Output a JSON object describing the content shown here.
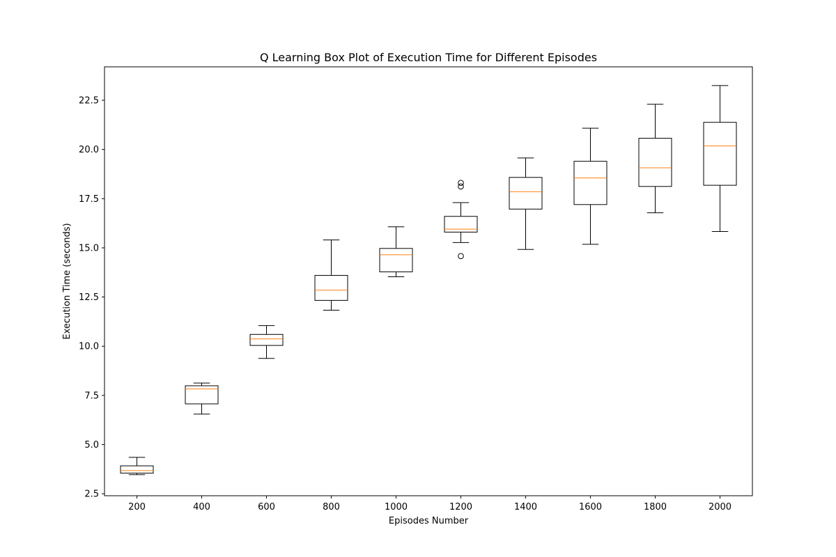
{
  "chart_data": {
    "type": "box",
    "title": "Q Learning Box Plot of Execution Time for Different Episodes",
    "xlabel": "Episodes Number",
    "ylabel": "Execution Time (seconds)",
    "ylim": [
      2.4,
      24.2
    ],
    "yticks": [
      2.5,
      5.0,
      7.5,
      10.0,
      12.5,
      15.0,
      17.5,
      20.0,
      22.5
    ],
    "ytick_labels": [
      "2.5",
      "5.0",
      "7.5",
      "10.0",
      "12.5",
      "15.0",
      "17.5",
      "20.0",
      "22.5"
    ],
    "categories": [
      "200",
      "400",
      "600",
      "800",
      "1000",
      "1200",
      "1400",
      "1600",
      "1800",
      "2000"
    ],
    "boxes": [
      {
        "whisker_low": 3.47,
        "q1": 3.55,
        "median": 3.68,
        "q3": 3.92,
        "whisker_high": 4.35,
        "outliers": []
      },
      {
        "whisker_low": 6.55,
        "q1": 7.07,
        "median": 7.83,
        "q3": 7.99,
        "whisker_high": 8.13,
        "outliers": []
      },
      {
        "whisker_low": 9.38,
        "q1": 10.04,
        "median": 10.37,
        "q3": 10.6,
        "whisker_high": 11.05,
        "outliers": []
      },
      {
        "whisker_low": 11.83,
        "q1": 12.33,
        "median": 12.85,
        "q3": 13.6,
        "whisker_high": 15.4,
        "outliers": []
      },
      {
        "whisker_low": 13.53,
        "q1": 13.78,
        "median": 14.65,
        "q3": 14.97,
        "whisker_high": 16.07,
        "outliers": []
      },
      {
        "whisker_low": 15.27,
        "q1": 15.8,
        "median": 15.95,
        "q3": 16.6,
        "whisker_high": 17.3,
        "outliers": [
          18.3,
          18.12,
          14.58
        ]
      },
      {
        "whisker_low": 14.92,
        "q1": 16.97,
        "median": 17.85,
        "q3": 18.58,
        "whisker_high": 19.57,
        "outliers": []
      },
      {
        "whisker_low": 15.18,
        "q1": 17.2,
        "median": 18.55,
        "q3": 19.4,
        "whisker_high": 21.08,
        "outliers": []
      },
      {
        "whisker_low": 16.78,
        "q1": 18.12,
        "median": 19.07,
        "q3": 20.57,
        "whisker_high": 22.3,
        "outliers": []
      },
      {
        "whisker_low": 15.83,
        "q1": 18.18,
        "median": 20.18,
        "q3": 21.38,
        "whisker_high": 23.25,
        "outliers": []
      }
    ],
    "colors": {
      "box": "#000000",
      "median": "#ff7f0e",
      "axes": "#000000"
    },
    "grid": false,
    "legend": "none"
  }
}
